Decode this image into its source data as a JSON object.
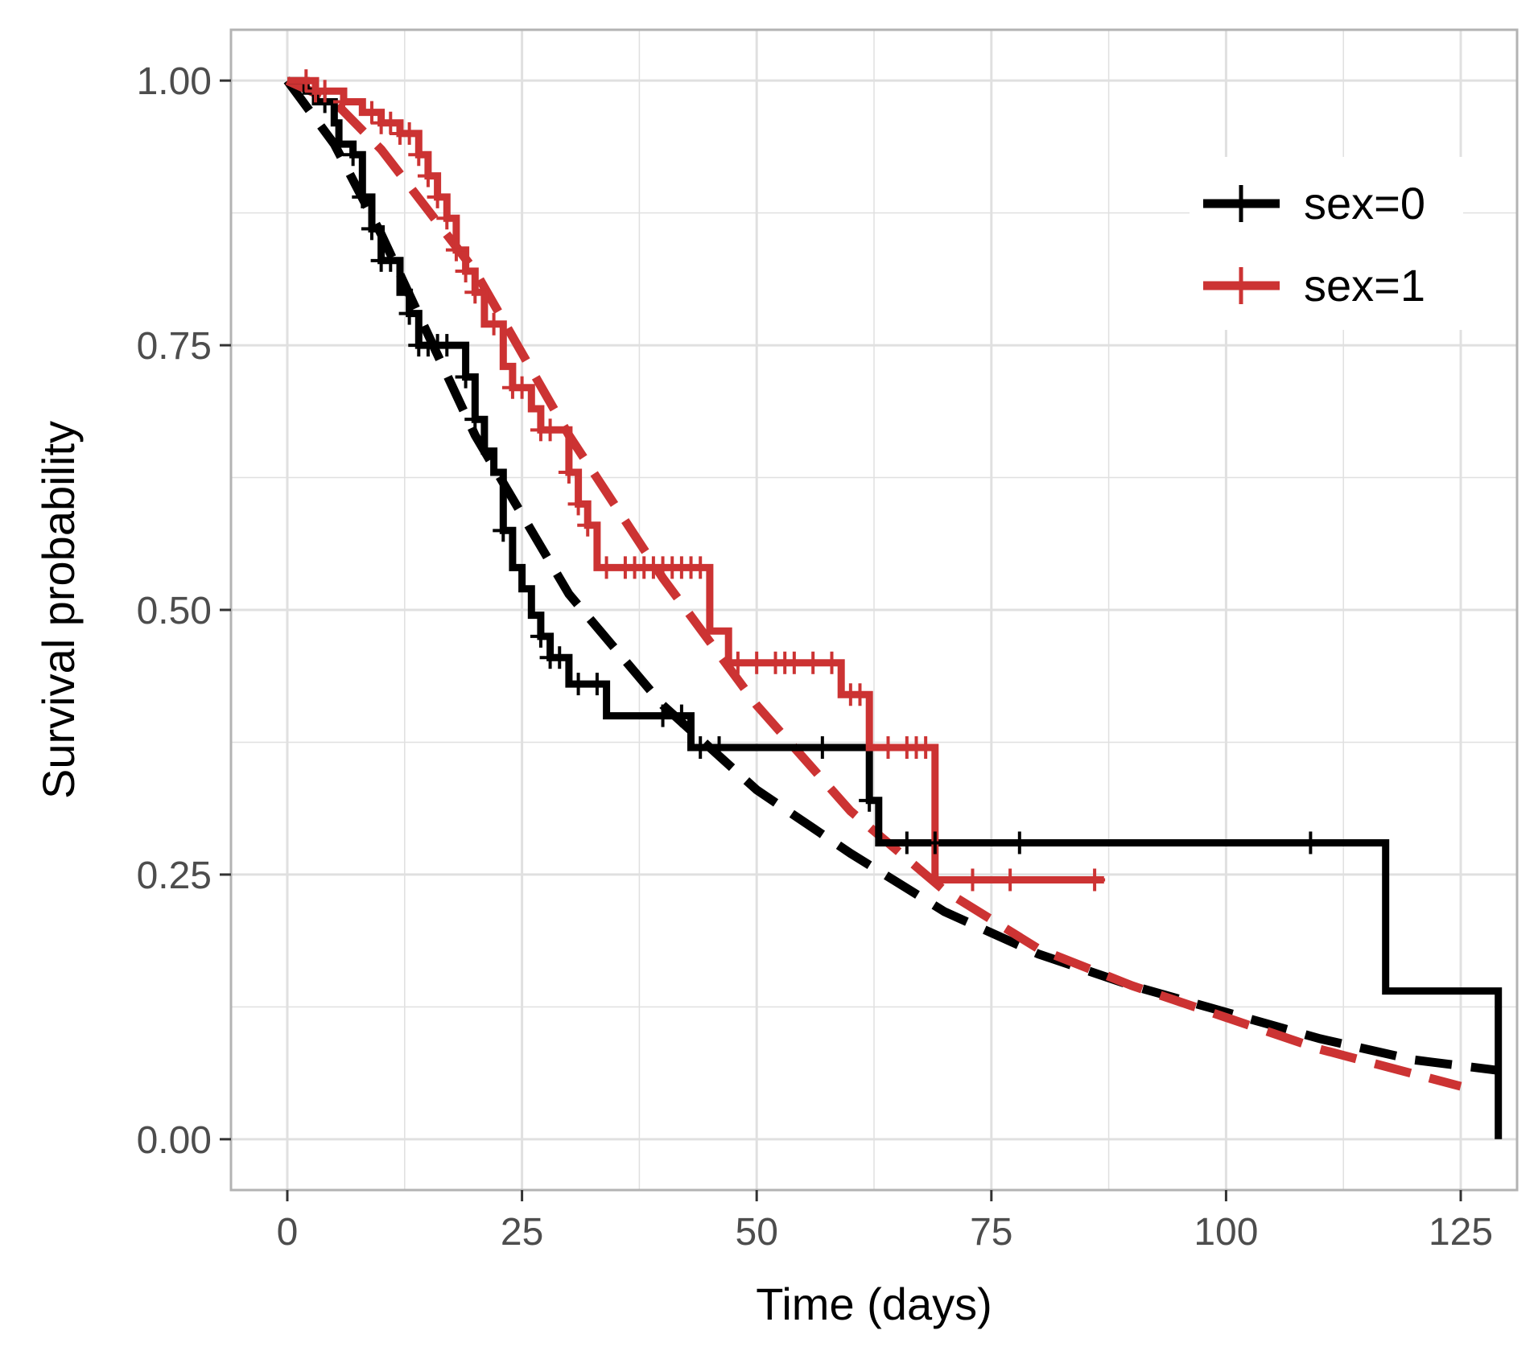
{
  "chart_data": {
    "type": "line",
    "title": "",
    "xlabel": "Time (days)",
    "ylabel": "Survival probability",
    "xlim": [
      -6,
      131
    ],
    "ylim": [
      -0.048,
      1.048
    ],
    "x_ticks": [
      0,
      25,
      50,
      75,
      100,
      125
    ],
    "x_tick_labels": [
      "0",
      "25",
      "50",
      "75",
      "100",
      "125"
    ],
    "y_ticks": [
      0,
      0.25,
      0.5,
      0.75,
      1.0
    ],
    "y_tick_labels": [
      "0.00",
      "0.25",
      "0.50",
      "0.75",
      "1.00"
    ],
    "grid": true,
    "legend_position": "top-right",
    "colors": {
      "sex0": "#000000",
      "sex1": "#cc3333",
      "grid": "#e0e0e0",
      "border": "#b3b3b3",
      "tick": "#4d4d4d"
    },
    "series": [
      {
        "name": "sex=0",
        "color": "#000000",
        "km_steps": [
          [
            0,
            1.0
          ],
          [
            2,
            0.99
          ],
          [
            3,
            0.98
          ],
          [
            5,
            0.96
          ],
          [
            5.5,
            0.94
          ],
          [
            7,
            0.93
          ],
          [
            8,
            0.89
          ],
          [
            9,
            0.86
          ],
          [
            10,
            0.83
          ],
          [
            12,
            0.8
          ],
          [
            13,
            0.78
          ],
          [
            14,
            0.75
          ],
          [
            19,
            0.72
          ],
          [
            20,
            0.68
          ],
          [
            21,
            0.65
          ],
          [
            22,
            0.63
          ],
          [
            23,
            0.575
          ],
          [
            24,
            0.54
          ],
          [
            25,
            0.52
          ],
          [
            26,
            0.495
          ],
          [
            27,
            0.475
          ],
          [
            28,
            0.455
          ],
          [
            30,
            0.43
          ],
          [
            34,
            0.4
          ],
          [
            43,
            0.37
          ],
          [
            62,
            0.32
          ],
          [
            63,
            0.28
          ],
          [
            117,
            0.14
          ],
          [
            129,
            0.0
          ]
        ],
        "km_end": 129,
        "censor_x": [
          4,
          7,
          8,
          9,
          10,
          11,
          13,
          14,
          15,
          16,
          17,
          19,
          20,
          23,
          27,
          28,
          29,
          31,
          33,
          40,
          42,
          44,
          46,
          57,
          62,
          66,
          69,
          78,
          109
        ],
        "fit_x": [
          0,
          5,
          10,
          20,
          30,
          40,
          50,
          60,
          70,
          80,
          90,
          100,
          110,
          120,
          129
        ],
        "fit_y": [
          1.0,
          0.94,
          0.855,
          0.665,
          0.515,
          0.41,
          0.33,
          0.27,
          0.215,
          0.175,
          0.145,
          0.12,
          0.095,
          0.075,
          0.065
        ]
      },
      {
        "name": "sex=1",
        "color": "#cc3333",
        "km_steps": [
          [
            0,
            1.0
          ],
          [
            3,
            0.99
          ],
          [
            6,
            0.98
          ],
          [
            8,
            0.97
          ],
          [
            10,
            0.96
          ],
          [
            12,
            0.95
          ],
          [
            14,
            0.93
          ],
          [
            15,
            0.91
          ],
          [
            16,
            0.89
          ],
          [
            17,
            0.87
          ],
          [
            18,
            0.84
          ],
          [
            19,
            0.82
          ],
          [
            20,
            0.8
          ],
          [
            21,
            0.77
          ],
          [
            23,
            0.73
          ],
          [
            24,
            0.71
          ],
          [
            26,
            0.69
          ],
          [
            27,
            0.67
          ],
          [
            30,
            0.63
          ],
          [
            31,
            0.6
          ],
          [
            32,
            0.58
          ],
          [
            33,
            0.54
          ],
          [
            45,
            0.48
          ],
          [
            47,
            0.45
          ],
          [
            59,
            0.42
          ],
          [
            62,
            0.37
          ],
          [
            69,
            0.245
          ]
        ],
        "km_end": 87,
        "censor_x": [
          2,
          3,
          4,
          6,
          9,
          10,
          11,
          12,
          13,
          14,
          15,
          16,
          17,
          18,
          19,
          20,
          22,
          24,
          25,
          27,
          28,
          30,
          31,
          32,
          34,
          36,
          37,
          38,
          39,
          40,
          41,
          42,
          43,
          44,
          48,
          50,
          52,
          53,
          54,
          56,
          58,
          60,
          61,
          64,
          66,
          67,
          68,
          73,
          77,
          86
        ],
        "fit_x": [
          0,
          5,
          10,
          20,
          30,
          40,
          50,
          60,
          70,
          80,
          90,
          100,
          110,
          125
        ],
        "fit_y": [
          1.0,
          0.98,
          0.935,
          0.82,
          0.665,
          0.53,
          0.41,
          0.31,
          0.235,
          0.18,
          0.145,
          0.115,
          0.085,
          0.05
        ]
      }
    ]
  }
}
